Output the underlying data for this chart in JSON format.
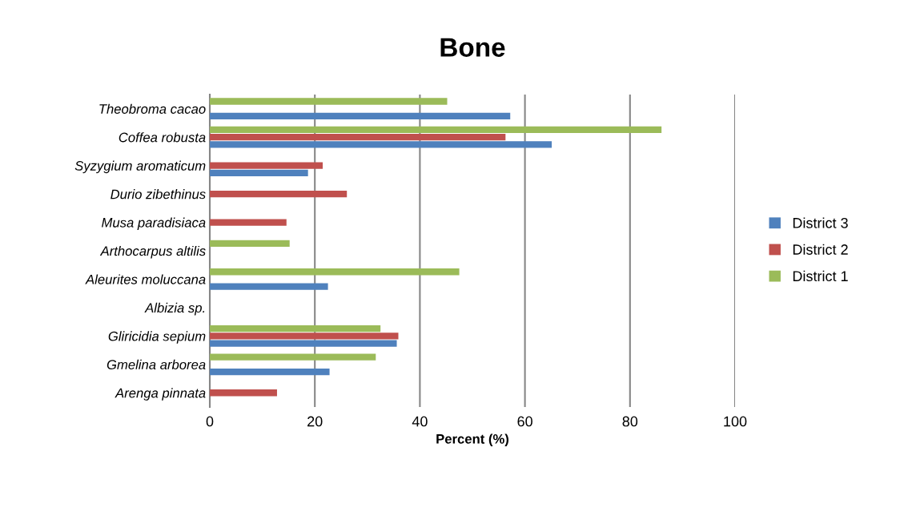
{
  "chart_data": {
    "type": "bar",
    "orientation": "horizontal",
    "title": "Bone",
    "xlabel": "Percent (%)",
    "categories": [
      "Theobroma cacao",
      "Coffea robusta",
      "Syzygium aromaticum",
      "Durio zibethinus",
      "Musa paradisiaca",
      "Arthocarpus altilis",
      "Aleurites moluccana",
      "Albizia sp.",
      "Gliricidia sepium",
      "Gmelina arborea",
      "Arenga pinnata"
    ],
    "series": [
      {
        "name": "District 1",
        "color": "#9bbb59",
        "values": [
          45.2,
          86,
          null,
          null,
          null,
          15.2,
          47.5,
          null,
          32.5,
          31.6,
          null
        ]
      },
      {
        "name": "District 2",
        "color": "#c0504d",
        "values": [
          null,
          56.3,
          21.5,
          26.1,
          14.6,
          null,
          null,
          null,
          35.9,
          null,
          12.8
        ]
      },
      {
        "name": "District 3",
        "color": "#4f81bd",
        "values": [
          57.2,
          65.1,
          18.7,
          null,
          null,
          null,
          22.5,
          null,
          35.6,
          22.8,
          null
        ]
      }
    ],
    "xlim": [
      0,
      100
    ],
    "xticks": [
      0,
      20,
      40,
      60,
      80,
      100
    ],
    "grid": "x",
    "legend": "right"
  }
}
